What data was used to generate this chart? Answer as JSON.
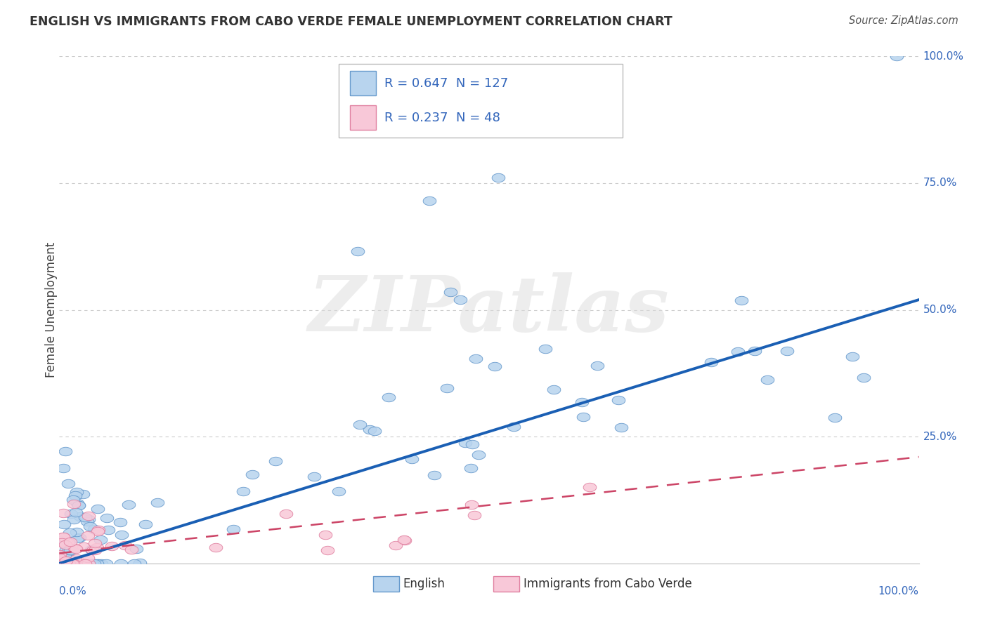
{
  "title": "ENGLISH VS IMMIGRANTS FROM CABO VERDE FEMALE UNEMPLOYMENT CORRELATION CHART",
  "source": "Source: ZipAtlas.com",
  "ylabel": "Female Unemployment",
  "series1_label": "English",
  "series1_R": 0.647,
  "series1_N": 127,
  "series1_color": "#b8d4ee",
  "series1_edge_color": "#6699cc",
  "series1_line_color": "#1a5fb4",
  "series2_label": "Immigrants from Cabo Verde",
  "series2_R": 0.237,
  "series2_N": 48,
  "series2_color": "#f8c8d8",
  "series2_edge_color": "#e080a0",
  "series2_line_color": "#cc4466",
  "background_color": "#ffffff",
  "grid_color": "#cccccc",
  "grid_linestyle": "--",
  "text_color_blue": "#3366bb",
  "title_color": "#333333",
  "watermark": "ZIPatlas",
  "watermark_color": "#dddddd",
  "xlim": [
    0.0,
    1.0
  ],
  "ylim": [
    0.0,
    1.0
  ],
  "trend1_slope": 0.52,
  "trend1_intercept": 0.0,
  "trend2_slope": 0.19,
  "trend2_intercept": 0.02
}
